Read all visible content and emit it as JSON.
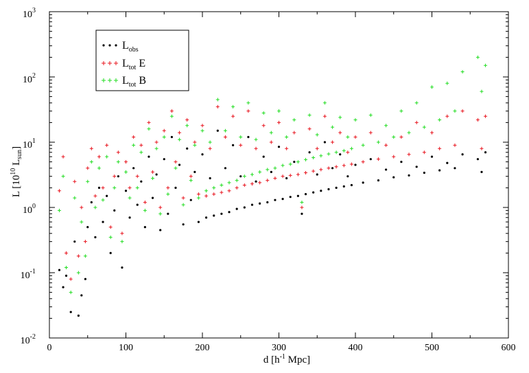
{
  "chart_data": {
    "type": "scatter",
    "title": "",
    "xlabel": {
      "main": "d [h",
      "sup": "-1",
      "rest": " Mpc]"
    },
    "ylabel": {
      "main": "L [10",
      "sup": "10",
      "mid": " L",
      "sub": "sun",
      "end": "]"
    },
    "xlim": [
      0,
      600
    ],
    "ylim": [
      0.01,
      1000
    ],
    "yscale": "log",
    "x_ticks": [
      0,
      100,
      200,
      300,
      400,
      500,
      600
    ],
    "x_tick_labels": [
      "0",
      "100",
      "200",
      "300",
      "400",
      "500",
      "600"
    ],
    "y_ticks": [
      0.01,
      0.1,
      1,
      10,
      100,
      1000
    ],
    "y_tick_labels": [
      {
        "base": "10",
        "exp": "-2"
      },
      {
        "base": "10",
        "exp": "-1"
      },
      {
        "base": "10",
        "exp": "0"
      },
      {
        "base": "10",
        "exp": "1"
      },
      {
        "base": "10",
        "exp": "2"
      },
      {
        "base": "10",
        "exp": "3"
      }
    ],
    "grid": false,
    "legend_position": "top-left",
    "series": [
      {
        "name": {
          "main": "L",
          "sub": "obs",
          "suffix": ""
        },
        "color": "#000000",
        "marker": "dot",
        "points": [
          [
            13,
            0.11
          ],
          [
            18,
            0.06
          ],
          [
            22,
            0.09
          ],
          [
            28,
            0.025
          ],
          [
            33,
            0.3
          ],
          [
            38,
            0.022
          ],
          [
            42,
            0.045
          ],
          [
            47,
            0.08
          ],
          [
            50,
            0.5
          ],
          [
            55,
            1.2
          ],
          [
            60,
            0.35
          ],
          [
            65,
            2.0
          ],
          [
            70,
            0.6
          ],
          [
            75,
            1.5
          ],
          [
            80,
            0.2
          ],
          [
            85,
            0.9
          ],
          [
            90,
            3.0
          ],
          [
            95,
            0.12
          ],
          [
            100,
            1.8
          ],
          [
            105,
            0.7
          ],
          [
            110,
            4.0
          ],
          [
            115,
            1.1
          ],
          [
            120,
            2.5
          ],
          [
            125,
            0.5
          ],
          [
            130,
            6.0
          ],
          [
            135,
            1.4
          ],
          [
            140,
            3.2
          ],
          [
            145,
            0.45
          ],
          [
            150,
            5.5
          ],
          [
            155,
            0.8
          ],
          [
            160,
            12
          ],
          [
            165,
            2.0
          ],
          [
            170,
            4.5
          ],
          [
            175,
            0.55
          ],
          [
            180,
            8.0
          ],
          [
            185,
            1.3
          ],
          [
            190,
            3.5
          ],
          [
            195,
            0.6
          ],
          [
            200,
            6.5
          ],
          [
            205,
            0.7
          ],
          [
            210,
            2.8
          ],
          [
            215,
            0.75
          ],
          [
            220,
            15
          ],
          [
            225,
            0.8
          ],
          [
            230,
            4.0
          ],
          [
            235,
            0.85
          ],
          [
            240,
            9.0
          ],
          [
            245,
            0.95
          ],
          [
            250,
            3.0
          ],
          [
            255,
            1.0
          ],
          [
            260,
            12
          ],
          [
            265,
            1.1
          ],
          [
            270,
            2.5
          ],
          [
            275,
            1.15
          ],
          [
            280,
            6.0
          ],
          [
            285,
            1.2
          ],
          [
            290,
            3.5
          ],
          [
            295,
            1.3
          ],
          [
            300,
            8.5
          ],
          [
            305,
            1.35
          ],
          [
            310,
            2.8
          ],
          [
            315,
            1.45
          ],
          [
            320,
            5.0
          ],
          [
            325,
            1.5
          ],
          [
            330,
            0.8
          ],
          [
            335,
            1.6
          ],
          [
            340,
            7.0
          ],
          [
            345,
            1.7
          ],
          [
            350,
            3.2
          ],
          [
            355,
            1.8
          ],
          [
            360,
            10
          ],
          [
            365,
            1.9
          ],
          [
            370,
            4.0
          ],
          [
            375,
            2.0
          ],
          [
            380,
            6.5
          ],
          [
            385,
            2.1
          ],
          [
            390,
            3.0
          ],
          [
            395,
            2.2
          ],
          [
            400,
            4.5
          ],
          [
            410,
            2.4
          ],
          [
            420,
            5.5
          ],
          [
            430,
            2.6
          ],
          [
            440,
            3.8
          ],
          [
            450,
            2.9
          ],
          [
            460,
            5.0
          ],
          [
            470,
            3.1
          ],
          [
            480,
            4.2
          ],
          [
            490,
            3.4
          ],
          [
            500,
            6.0
          ],
          [
            510,
            3.7
          ],
          [
            520,
            4.8
          ],
          [
            530,
            4.0
          ],
          [
            540,
            6.5
          ],
          [
            560,
            5.5
          ],
          [
            565,
            3.5
          ],
          [
            570,
            7.0
          ]
        ]
      },
      {
        "name": {
          "main": "L",
          "sub": "tot",
          "suffix": " E"
        },
        "color": "#e8141e",
        "marker": "plus",
        "points": [
          [
            13,
            1.8
          ],
          [
            18,
            6.0
          ],
          [
            22,
            0.2
          ],
          [
            28,
            0.08
          ],
          [
            33,
            2.5
          ],
          [
            38,
            0.18
          ],
          [
            42,
            1.0
          ],
          [
            47,
            0.3
          ],
          [
            50,
            4.0
          ],
          [
            55,
            8.0
          ],
          [
            60,
            1.5
          ],
          [
            65,
            6.0
          ],
          [
            70,
            2.0
          ],
          [
            75,
            9.0
          ],
          [
            80,
            0.5
          ],
          [
            85,
            3.0
          ],
          [
            90,
            7.0
          ],
          [
            95,
            0.4
          ],
          [
            100,
            5.0
          ],
          [
            105,
            2.0
          ],
          [
            110,
            12
          ],
          [
            115,
            3.0
          ],
          [
            120,
            9.0
          ],
          [
            125,
            1.2
          ],
          [
            130,
            20
          ],
          [
            135,
            3.5
          ],
          [
            140,
            10
          ],
          [
            145,
            1.0
          ],
          [
            150,
            15
          ],
          [
            155,
            2.0
          ],
          [
            160,
            30
          ],
          [
            165,
            5.0
          ],
          [
            170,
            14
          ],
          [
            175,
            1.4
          ],
          [
            180,
            22
          ],
          [
            185,
            3.0
          ],
          [
            190,
            10
          ],
          [
            195,
            1.6
          ],
          [
            200,
            18
          ],
          [
            205,
            1.5
          ],
          [
            210,
            8.0
          ],
          [
            215,
            1.6
          ],
          [
            220,
            35
          ],
          [
            225,
            1.7
          ],
          [
            230,
            12
          ],
          [
            235,
            1.8
          ],
          [
            240,
            25
          ],
          [
            245,
            2.0
          ],
          [
            250,
            9.0
          ],
          [
            255,
            2.2
          ],
          [
            260,
            30
          ],
          [
            265,
            2.3
          ],
          [
            270,
            8.0
          ],
          [
            275,
            2.4
          ],
          [
            280,
            18
          ],
          [
            285,
            2.6
          ],
          [
            290,
            10
          ],
          [
            295,
            2.8
          ],
          [
            300,
            20
          ],
          [
            305,
            3.0
          ],
          [
            310,
            8.0
          ],
          [
            315,
            3.1
          ],
          [
            320,
            14
          ],
          [
            325,
            3.2
          ],
          [
            330,
            1.0
          ],
          [
            335,
            3.4
          ],
          [
            340,
            16
          ],
          [
            345,
            3.6
          ],
          [
            350,
            8.0
          ],
          [
            355,
            3.8
          ],
          [
            360,
            25
          ],
          [
            365,
            4.0
          ],
          [
            370,
            10
          ],
          [
            375,
            4.2
          ],
          [
            380,
            14
          ],
          [
            385,
            4.4
          ],
          [
            390,
            7.0
          ],
          [
            395,
            4.6
          ],
          [
            400,
            12
          ],
          [
            410,
            5.0
          ],
          [
            420,
            14
          ],
          [
            430,
            5.5
          ],
          [
            440,
            9.0
          ],
          [
            450,
            6.0
          ],
          [
            460,
            12
          ],
          [
            470,
            6.5
          ],
          [
            480,
            20
          ],
          [
            490,
            7.0
          ],
          [
            500,
            14
          ],
          [
            510,
            8.0
          ],
          [
            520,
            25
          ],
          [
            530,
            9.0
          ],
          [
            540,
            30
          ],
          [
            560,
            22
          ],
          [
            565,
            8.0
          ],
          [
            570,
            25
          ]
        ]
      },
      {
        "name": {
          "main": "L",
          "sub": "tot",
          "suffix": " B"
        },
        "color": "#22dd22",
        "marker": "plus",
        "points": [
          [
            13,
            0.9
          ],
          [
            18,
            3.0
          ],
          [
            22,
            0.12
          ],
          [
            28,
            0.05
          ],
          [
            33,
            1.4
          ],
          [
            38,
            0.1
          ],
          [
            42,
            0.6
          ],
          [
            47,
            0.18
          ],
          [
            50,
            2.5
          ],
          [
            55,
            5.0
          ],
          [
            60,
            1.0
          ],
          [
            65,
            4.0
          ],
          [
            70,
            1.3
          ],
          [
            75,
            6.0
          ],
          [
            80,
            0.35
          ],
          [
            85,
            2.0
          ],
          [
            90,
            5.0
          ],
          [
            95,
            0.3
          ],
          [
            100,
            3.5
          ],
          [
            105,
            1.4
          ],
          [
            110,
            9.0
          ],
          [
            115,
            2.0
          ],
          [
            120,
            7.0
          ],
          [
            125,
            0.9
          ],
          [
            130,
            16
          ],
          [
            135,
            2.8
          ],
          [
            140,
            8.0
          ],
          [
            145,
            0.8
          ],
          [
            150,
            12
          ],
          [
            155,
            1.6
          ],
          [
            160,
            25
          ],
          [
            165,
            4.0
          ],
          [
            170,
            11
          ],
          [
            175,
            1.1
          ],
          [
            180,
            18
          ],
          [
            185,
            2.6
          ],
          [
            190,
            9.0
          ],
          [
            195,
            1.4
          ],
          [
            200,
            15
          ],
          [
            205,
            1.8
          ],
          [
            210,
            10
          ],
          [
            215,
            2.0
          ],
          [
            220,
            45
          ],
          [
            225,
            2.2
          ],
          [
            230,
            15
          ],
          [
            235,
            2.4
          ],
          [
            240,
            35
          ],
          [
            245,
            2.6
          ],
          [
            250,
            12
          ],
          [
            255,
            3.0
          ],
          [
            260,
            40
          ],
          [
            265,
            3.2
          ],
          [
            270,
            11
          ],
          [
            275,
            3.5
          ],
          [
            280,
            28
          ],
          [
            285,
            3.8
          ],
          [
            290,
            14
          ],
          [
            295,
            4.0
          ],
          [
            300,
            30
          ],
          [
            305,
            4.4
          ],
          [
            310,
            12
          ],
          [
            315,
            4.6
          ],
          [
            320,
            22
          ],
          [
            325,
            5.0
          ],
          [
            330,
            1.2
          ],
          [
            335,
            5.4
          ],
          [
            340,
            26
          ],
          [
            345,
            5.8
          ],
          [
            350,
            13
          ],
          [
            355,
            6.2
          ],
          [
            360,
            40
          ],
          [
            365,
            6.6
          ],
          [
            370,
            17
          ],
          [
            375,
            7.0
          ],
          [
            380,
            24
          ],
          [
            385,
            7.4
          ],
          [
            390,
            12
          ],
          [
            395,
            8.0
          ],
          [
            400,
            22
          ],
          [
            410,
            9.0
          ],
          [
            420,
            26
          ],
          [
            430,
            10
          ],
          [
            440,
            18
          ],
          [
            450,
            12
          ],
          [
            460,
            30
          ],
          [
            470,
            14
          ],
          [
            480,
            40
          ],
          [
            490,
            17
          ],
          [
            500,
            70
          ],
          [
            510,
            22
          ],
          [
            520,
            80
          ],
          [
            530,
            30
          ],
          [
            540,
            120
          ],
          [
            560,
            200
          ],
          [
            565,
            60
          ],
          [
            570,
            150
          ]
        ]
      }
    ]
  }
}
